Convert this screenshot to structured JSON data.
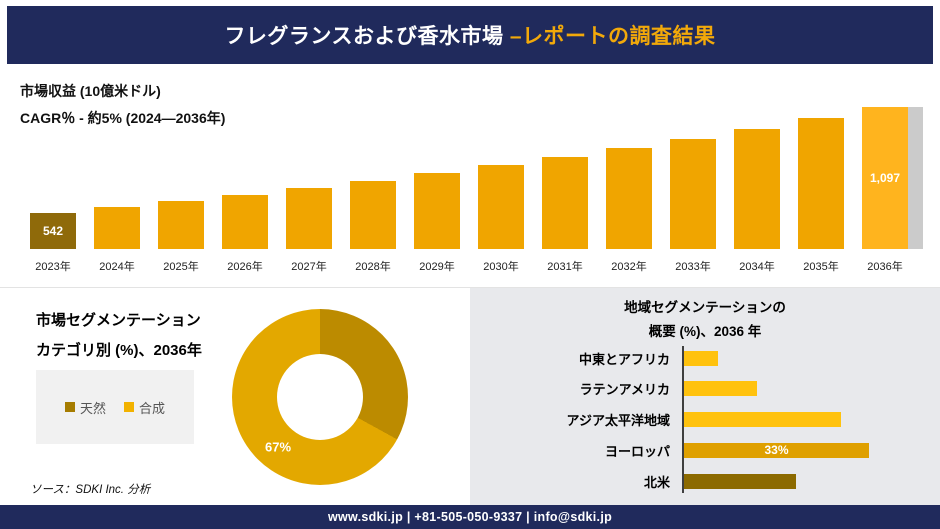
{
  "header": {
    "title_main": "フレグランスおよび香水市場 ",
    "title_accent": "–レポートの調査結果"
  },
  "chart_data": [
    {
      "type": "bar",
      "title": "市場収益 (10億米ドル)",
      "subtitle": "CAGR％ - 約5% (2024―2036年)",
      "categories": [
        "2023年",
        "2024年",
        "2025年",
        "2026年",
        "2027年",
        "2028年",
        "2029年",
        "2030年",
        "2031年",
        "2032年",
        "2033年",
        "2034年",
        "2035年",
        "2036年"
      ],
      "values": [
        542,
        572,
        604,
        638,
        673,
        711,
        750,
        792,
        836,
        883,
        932,
        984,
        1039,
        1097
      ],
      "value_labels": {
        "0": "542",
        "13": "1,097"
      },
      "colors": {
        "first": "#8f6a0a",
        "default": "#f0a500",
        "last": "#ffb41e"
      },
      "legend_position": "none",
      "grid": false
    },
    {
      "type": "pie",
      "title_line1": "市場セグメンテーション",
      "title_line2": "カテゴリ別 (%)、2036年",
      "labels": [
        "天然",
        "合成"
      ],
      "values": [
        33,
        67
      ],
      "colors": [
        "#bc8b00",
        "#e3a800"
      ],
      "legend_colors": [
        "#a67c00",
        "#f2b200"
      ],
      "slice_label": "67%",
      "donut": true,
      "legend_position": "left",
      "source": "ソース：SDKI Inc. 分析"
    },
    {
      "type": "bar",
      "orientation": "horizontal",
      "title_line1": "地域セグメンテーションの",
      "title_line2": "概要 (%)、2036 年",
      "categories": [
        "中東とアフリカ",
        "ラテンアメリカ",
        "アジア太平洋地域",
        "ヨーロッパ",
        "北米"
      ],
      "values": [
        6,
        13,
        28,
        33,
        20
      ],
      "colors": [
        "#ffc20e",
        "#ffc20e",
        "#ffc20e",
        "#dfa000",
        "#8c6a00"
      ],
      "value_labels": {
        "3": "33%"
      },
      "grid": false
    }
  ],
  "footer": {
    "text": "www.sdki.jp | +81-505-050-9337 | info@sdki.jp"
  }
}
